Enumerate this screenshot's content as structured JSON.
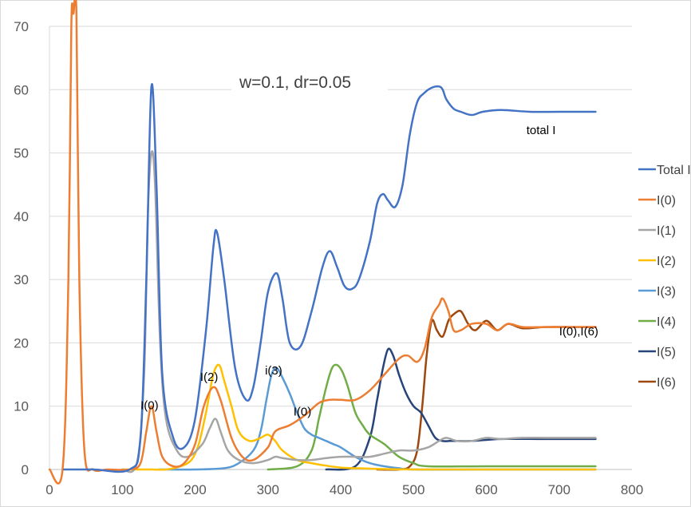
{
  "chart_data": {
    "type": "line",
    "title": "w=0.1, dr=0.05",
    "xlim": [
      0,
      800
    ],
    "ylim": [
      0,
      70
    ],
    "xticks": [
      0,
      100,
      200,
      300,
      400,
      500,
      600,
      700,
      800
    ],
    "yticks": [
      0,
      10,
      20,
      30,
      40,
      50,
      60,
      70
    ],
    "grid": "horizontal",
    "legend_position": "right",
    "series": [
      {
        "name": "Total I",
        "color": "#4472C4",
        "x": [
          20,
          60,
          110,
          125,
          133,
          140,
          147,
          155,
          170,
          185,
          200,
          215,
          225,
          230,
          240,
          255,
          270,
          280,
          290,
          300,
          312,
          320,
          330,
          345,
          360,
          375,
          385,
          395,
          405,
          415,
          425,
          440,
          450,
          458,
          465,
          475,
          485,
          495,
          505,
          515,
          525,
          535,
          540,
          545,
          555,
          565,
          580,
          595,
          620,
          660,
          700,
          750
        ],
        "y": [
          0,
          0,
          0,
          5,
          30,
          60.5,
          45,
          15,
          5,
          3.5,
          8,
          22,
          35,
          37.5,
          30,
          16,
          11,
          13,
          20,
          28,
          31,
          27,
          20,
          19.5,
          25,
          32,
          34.5,
          32,
          29,
          28.5,
          30,
          36,
          42,
          43.5,
          42.5,
          41.5,
          45,
          53,
          58,
          59.5,
          60.3,
          60.5,
          60,
          58.5,
          57,
          56.5,
          56,
          56.5,
          56.8,
          56.5,
          56.5,
          56.5
        ]
      },
      {
        "name": "I(0)",
        "color": "#ED7D31",
        "x": [
          0,
          18,
          26,
          30,
          33,
          37,
          41,
          48,
          60,
          80,
          110,
          125,
          133,
          140,
          147,
          155,
          170,
          185,
          200,
          212,
          225,
          235,
          250,
          265,
          280,
          300,
          310,
          330,
          350,
          370,
          385,
          400,
          420,
          440,
          460,
          480,
          492,
          505,
          515,
          525,
          535,
          540,
          548,
          555,
          565,
          580,
          600,
          615,
          630,
          650,
          680,
          720,
          750
        ],
        "y": [
          0,
          0,
          30,
          70,
          72,
          72,
          30,
          3,
          0,
          0,
          0,
          1,
          6,
          10,
          6,
          2,
          0.5,
          1,
          4,
          10,
          13,
          11,
          5,
          2,
          1.5,
          3.5,
          6,
          7,
          8.5,
          10.5,
          11,
          11,
          11,
          12.5,
          15,
          17.5,
          18,
          17,
          19,
          24,
          26,
          27,
          25,
          22,
          22,
          23,
          23,
          22,
          23,
          22.5,
          22.5,
          22.5,
          22.5
        ]
      },
      {
        "name": "I(1)",
        "color": "#A5A5A5",
        "x": [
          100,
          120,
          130,
          135,
          140,
          145,
          152,
          160,
          175,
          190,
          210,
          220,
          228,
          235,
          245,
          260,
          280,
          300,
          310,
          320,
          340,
          360,
          380,
          400,
          420,
          440,
          460,
          480,
          500,
          520,
          535,
          545,
          560,
          580,
          600,
          620,
          650,
          700,
          750
        ],
        "y": [
          0,
          1,
          15,
          40,
          50,
          45,
          20,
          8,
          3,
          2,
          4,
          6.5,
          8,
          6,
          3,
          1.5,
          1,
          1.5,
          2,
          1.8,
          1.5,
          1.5,
          1.8,
          2,
          2,
          2,
          2.5,
          3,
          3,
          3.5,
          4.5,
          5,
          4.5,
          4.5,
          5,
          4.8,
          5,
          5,
          5
        ]
      },
      {
        "name": "I(2)",
        "color": "#FFC000",
        "x": [
          100,
          140,
          160,
          180,
          195,
          205,
          215,
          225,
          233,
          240,
          250,
          260,
          275,
          290,
          300,
          310,
          320,
          340,
          360,
          380,
          400,
          420,
          450,
          500,
          600,
          750
        ],
        "y": [
          0,
          0,
          0,
          0.5,
          1.5,
          4,
          9,
          15,
          16.5,
          14,
          10,
          6,
          4.5,
          5,
          5.5,
          4.5,
          3,
          1.5,
          1,
          0.6,
          0.3,
          0.2,
          0.1,
          0,
          0,
          0
        ]
      },
      {
        "name": "I(3)",
        "color": "#5B9BD5",
        "x": [
          150,
          200,
          240,
          260,
          280,
          290,
          298,
          305,
          312,
          320,
          330,
          340,
          350,
          360,
          370,
          380,
          390,
          400,
          420,
          440,
          460,
          480,
          500,
          600,
          750
        ],
        "y": [
          0,
          0,
          0.2,
          1,
          3,
          6,
          11,
          15,
          16,
          14.5,
          12,
          9,
          6.5,
          5.5,
          5,
          4.5,
          4,
          3.5,
          2,
          1,
          0.5,
          0.2,
          0,
          0,
          0
        ]
      },
      {
        "name": "I(4)",
        "color": "#70AD47",
        "x": [
          300,
          340,
          360,
          370,
          380,
          388,
          395,
          402,
          410,
          420,
          430,
          440,
          460,
          480,
          500,
          520,
          600,
          750
        ],
        "y": [
          0,
          0.5,
          3,
          8,
          13,
          16,
          16.5,
          15.5,
          13,
          9,
          7,
          5.5,
          4,
          2,
          1,
          0.5,
          0.5,
          0.5
        ]
      },
      {
        "name": "I(5)",
        "color": "#264478",
        "x": [
          380,
          420,
          440,
          450,
          458,
          465,
          472,
          480,
          490,
          500,
          510,
          520,
          530,
          540,
          550,
          560,
          580,
          620,
          680,
          750
        ],
        "y": [
          0,
          0.5,
          5,
          11,
          16,
          19,
          18,
          15,
          12,
          10,
          9,
          7,
          5,
          4.5,
          4.5,
          4.5,
          4.5,
          4.8,
          4.8,
          4.8
        ]
      },
      {
        "name": "I(6)",
        "color": "#9E480E",
        "x": [
          450,
          480,
          495,
          505,
          512,
          518,
          525,
          532,
          540,
          548,
          555,
          565,
          575,
          585,
          600,
          615,
          630,
          650,
          680,
          720,
          750
        ],
        "y": [
          0,
          0,
          0.5,
          3,
          10,
          18,
          23.5,
          22,
          21,
          23.5,
          24.5,
          25,
          23,
          22,
          23.5,
          22,
          23,
          22.3,
          22.5,
          22.5,
          22.5
        ]
      }
    ],
    "annotations": [
      {
        "text": "total I",
        "x": 655,
        "y": 53
      },
      {
        "text": "I(0)",
        "x": 125,
        "y": 9.5
      },
      {
        "text": "I(2)",
        "x": 207,
        "y": 14
      },
      {
        "text": "i(3)",
        "x": 296,
        "y": 15
      },
      {
        "text": "I(0)",
        "x": 335,
        "y": 8.5
      },
      {
        "text": "I(0),I(6)",
        "x": 700,
        "y": 21.2
      }
    ]
  }
}
